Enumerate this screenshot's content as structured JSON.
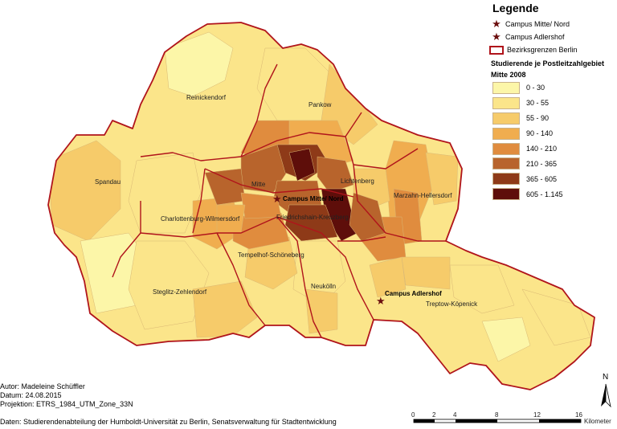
{
  "legend": {
    "title": "Legende",
    "campus_mitte": "Campus Mitte/ Nord",
    "campus_adlershof": "Campus Adlershof",
    "bezirksgrenzen": "Bezirksgrenzen Berlin",
    "subtitle": "Studierende je Postleitzahlgebiet",
    "period": "Mitte 2008",
    "classes": [
      {
        "label": "0 - 30",
        "color": "#fcf6a8"
      },
      {
        "label": "30 - 55",
        "color": "#fbe58a"
      },
      {
        "label": "55 - 90",
        "color": "#f6cb6a"
      },
      {
        "label": "90 - 140",
        "color": "#f0ad4f"
      },
      {
        "label": "140 - 210",
        "color": "#e08c3e"
      },
      {
        "label": "210 - 365",
        "color": "#b8642c"
      },
      {
        "label": "365 - 605",
        "color": "#8e3a18"
      },
      {
        "label": "605 - 1.145",
        "color": "#5e0e0a"
      }
    ]
  },
  "districts": {
    "reinickendorf": "Reinickendorf",
    "pankow": "Pankow",
    "spandau": "Spandau",
    "mitte": "Mitte",
    "lichtenberg": "Lichtenberg",
    "marzahn": "Marzahn-Hellersdorf",
    "charlottenburg": "Charlottenburg-Wilmersdorf",
    "friedrichshain": "Friedrichshain-Kreuzberg",
    "tempelhof": "Tempelhof-Schöneberg",
    "steglitz": "Steglitz-Zehlendorf",
    "neukoelln": "Neukölln",
    "treptow": "Treptow-Köpenick"
  },
  "campus_labels": {
    "mitte": "Campus Mitte/ Nord",
    "adlershof": "Campus Adlershof"
  },
  "footer": {
    "author": "Autor: Madeleine Schüffler",
    "date": "Datum: 24.08.2015",
    "projection": "Projektion: ETRS_1984_UTM_Zone_33N",
    "sources": "Daten: Studierendenabteilung der Humboldt-Universität zu Berlin, Senatsverwaltung für Stadtentwicklung"
  },
  "scale": {
    "ticks": [
      "0",
      "2",
      "4",
      "8",
      "12",
      "16"
    ],
    "unit": "Kilometer"
  },
  "north": "N",
  "colors": {
    "district_border": "#b0141b",
    "campus_star": "#6b0f0f"
  }
}
